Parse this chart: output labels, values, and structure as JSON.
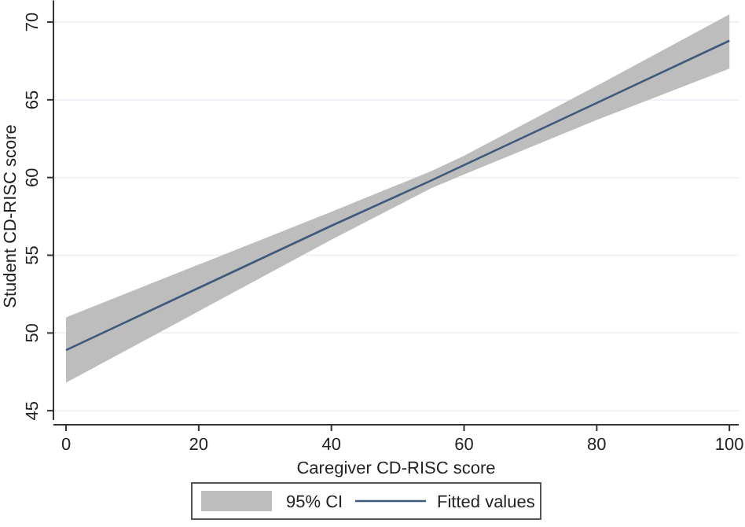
{
  "chart_data": {
    "type": "line",
    "xlabel": "Caregiver CD-RISC score",
    "ylabel": "Student CD-RISC score",
    "x": [
      0,
      20,
      40,
      55,
      60,
      80,
      100
    ],
    "xlim": [
      -1.9,
      101.4
    ],
    "xticks": [
      0,
      20,
      40,
      60,
      80,
      100
    ],
    "ylim": [
      44.4,
      71.4
    ],
    "yticks": [
      45,
      50,
      55,
      60,
      65,
      70
    ],
    "grid": "y",
    "legend": "bottom",
    "annotations": [
      "95% CI"
    ],
    "series": [
      {
        "name": "Fitted values",
        "color": "#3d5a7a",
        "values": [
          48.9,
          52.9,
          56.9,
          59.8,
          60.8,
          64.8,
          68.8
        ],
        "lower": [
          46.8,
          51.4,
          56.0,
          59.3,
          60.2,
          63.7,
          67.0
        ],
        "upper": [
          51.0,
          54.4,
          57.8,
          60.4,
          61.4,
          65.9,
          70.5
        ]
      }
    ]
  }
}
